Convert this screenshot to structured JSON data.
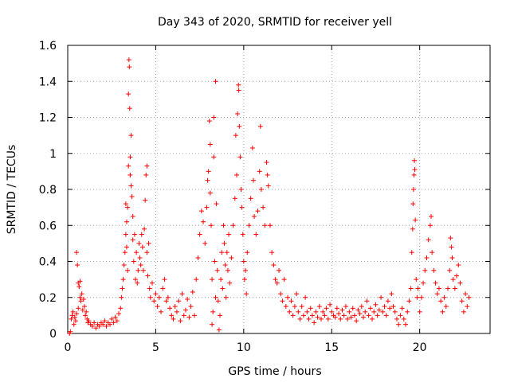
{
  "chart_data": {
    "type": "scatter",
    "title": "Day 343 of 2020, SRMTID for receiver yell",
    "xlabel": "GPS time / hours",
    "ylabel": "SRMTID / TECUs",
    "xlim": [
      0,
      24
    ],
    "ylim": [
      0,
      1.6
    ],
    "xticks": [
      0,
      5,
      10,
      15,
      20
    ],
    "xtick_labels": [
      "0",
      "5",
      "10",
      "15",
      "20"
    ],
    "yticks": [
      0,
      0.2,
      0.4,
      0.6,
      0.8,
      1.0,
      1.2,
      1.4,
      1.6
    ],
    "ytick_labels": [
      "0",
      "0.2",
      "0.4",
      "0.6",
      "0.8",
      "1",
      "1.2",
      "1.4",
      "1.6"
    ],
    "grid": true,
    "marker": "+",
    "marker_color": "#ff0000",
    "series": [
      {
        "name": "SRMTID",
        "points": [
          [
            0.1,
            0.0
          ],
          [
            0.15,
            0.01
          ],
          [
            0.2,
            0.08
          ],
          [
            0.25,
            0.1
          ],
          [
            0.3,
            0.12
          ],
          [
            0.35,
            0.05
          ],
          [
            0.4,
            0.09
          ],
          [
            0.45,
            0.07
          ],
          [
            0.5,
            0.11
          ],
          [
            0.5,
            0.45
          ],
          [
            0.55,
            0.38
          ],
          [
            0.6,
            0.14
          ],
          [
            0.6,
            0.28
          ],
          [
            0.65,
            0.26
          ],
          [
            0.7,
            0.29
          ],
          [
            0.7,
            0.2
          ],
          [
            0.75,
            0.18
          ],
          [
            0.8,
            0.22
          ],
          [
            0.85,
            0.13
          ],
          [
            0.9,
            0.19
          ],
          [
            0.95,
            0.15
          ],
          [
            1.0,
            0.1
          ],
          [
            1.05,
            0.12
          ],
          [
            1.1,
            0.08
          ],
          [
            1.15,
            0.06
          ],
          [
            1.2,
            0.07
          ],
          [
            1.3,
            0.05
          ],
          [
            1.4,
            0.04
          ],
          [
            1.5,
            0.06
          ],
          [
            1.6,
            0.03
          ],
          [
            1.7,
            0.05
          ],
          [
            1.8,
            0.04
          ],
          [
            1.9,
            0.06
          ],
          [
            2.0,
            0.05
          ],
          [
            2.1,
            0.07
          ],
          [
            2.2,
            0.04
          ],
          [
            2.3,
            0.06
          ],
          [
            2.4,
            0.05
          ],
          [
            2.5,
            0.08
          ],
          [
            2.6,
            0.06
          ],
          [
            2.7,
            0.09
          ],
          [
            2.8,
            0.07
          ],
          [
            2.9,
            0.11
          ],
          [
            3.0,
            0.14
          ],
          [
            3.05,
            0.2
          ],
          [
            3.1,
            0.25
          ],
          [
            3.15,
            0.3
          ],
          [
            3.2,
            0.38
          ],
          [
            3.25,
            0.45
          ],
          [
            3.3,
            0.55
          ],
          [
            3.3,
            0.72
          ],
          [
            3.35,
            0.48
          ],
          [
            3.35,
            0.62
          ],
          [
            3.4,
            0.35
          ],
          [
            3.4,
            0.7
          ],
          [
            3.45,
            0.93
          ],
          [
            3.45,
            1.33
          ],
          [
            3.48,
            1.52
          ],
          [
            3.5,
            1.48
          ],
          [
            3.52,
            1.25
          ],
          [
            3.55,
            0.98
          ],
          [
            3.55,
            0.88
          ],
          [
            3.6,
            1.1
          ],
          [
            3.6,
            0.82
          ],
          [
            3.65,
            0.76
          ],
          [
            3.7,
            0.65
          ],
          [
            3.7,
            0.52
          ],
          [
            3.75,
            0.4
          ],
          [
            3.8,
            0.55
          ],
          [
            3.85,
            0.3
          ],
          [
            3.9,
            0.45
          ],
          [
            3.95,
            0.28
          ],
          [
            4.0,
            0.35
          ],
          [
            4.05,
            0.5
          ],
          [
            4.1,
            0.42
          ],
          [
            4.15,
            0.38
          ],
          [
            4.2,
            0.55
          ],
          [
            4.25,
            0.48
          ],
          [
            4.3,
            0.35
          ],
          [
            4.35,
            0.58
          ],
          [
            4.4,
            0.74
          ],
          [
            4.45,
            0.88
          ],
          [
            4.5,
            0.93
          ],
          [
            4.5,
            0.45
          ],
          [
            4.55,
            0.32
          ],
          [
            4.6,
            0.5
          ],
          [
            4.65,
            0.25
          ],
          [
            4.7,
            0.2
          ],
          [
            4.8,
            0.28
          ],
          [
            4.9,
            0.18
          ],
          [
            5.0,
            0.22
          ],
          [
            5.1,
            0.15
          ],
          [
            5.2,
            0.2
          ],
          [
            5.3,
            0.12
          ],
          [
            5.4,
            0.25
          ],
          [
            5.5,
            0.3
          ],
          [
            5.6,
            0.18
          ],
          [
            5.7,
            0.2
          ],
          [
            5.8,
            0.14
          ],
          [
            5.9,
            0.1
          ],
          [
            6.0,
            0.08
          ],
          [
            6.1,
            0.15
          ],
          [
            6.2,
            0.12
          ],
          [
            6.3,
            0.18
          ],
          [
            6.4,
            0.07
          ],
          [
            6.5,
            0.22
          ],
          [
            6.6,
            0.1
          ],
          [
            6.7,
            0.13
          ],
          [
            6.8,
            0.19
          ],
          [
            6.9,
            0.09
          ],
          [
            7.0,
            0.15
          ],
          [
            7.1,
            0.23
          ],
          [
            7.2,
            0.1
          ],
          [
            7.3,
            0.3
          ],
          [
            7.4,
            0.42
          ],
          [
            7.5,
            0.55
          ],
          [
            7.6,
            0.68
          ],
          [
            7.7,
            0.62
          ],
          [
            7.8,
            0.5
          ],
          [
            7.9,
            0.7
          ],
          [
            7.95,
            0.85
          ],
          [
            8.0,
            0.9
          ],
          [
            8.05,
            1.18
          ],
          [
            8.1,
            1.05
          ],
          [
            8.1,
            0.78
          ],
          [
            8.15,
            0.6
          ],
          [
            8.2,
            0.3
          ],
          [
            8.2,
            0.05
          ],
          [
            8.25,
            0.12
          ],
          [
            8.3,
            0.98
          ],
          [
            8.3,
            1.2
          ],
          [
            8.35,
            0.4
          ],
          [
            8.4,
            1.4
          ],
          [
            8.4,
            0.2
          ],
          [
            8.45,
            0.72
          ],
          [
            8.5,
            0.35
          ],
          [
            8.55,
            0.18
          ],
          [
            8.6,
            0.02
          ],
          [
            8.65,
            0.1
          ],
          [
            8.7,
            0.3
          ],
          [
            8.75,
            0.45
          ],
          [
            8.8,
            0.25
          ],
          [
            8.85,
            0.6
          ],
          [
            8.9,
            0.5
          ],
          [
            8.95,
            0.38
          ],
          [
            9.0,
            0.2
          ],
          [
            9.05,
            0.45
          ],
          [
            9.1,
            0.35
          ],
          [
            9.15,
            0.55
          ],
          [
            9.2,
            0.28
          ],
          [
            9.3,
            0.42
          ],
          [
            9.4,
            0.6
          ],
          [
            9.5,
            0.75
          ],
          [
            9.55,
            1.1
          ],
          [
            9.6,
            0.88
          ],
          [
            9.65,
            1.22
          ],
          [
            9.7,
            1.38
          ],
          [
            9.72,
            1.35
          ],
          [
            9.75,
            1.15
          ],
          [
            9.8,
            0.98
          ],
          [
            9.85,
            0.8
          ],
          [
            9.9,
            0.7
          ],
          [
            9.95,
            0.55
          ],
          [
            10.0,
            0.4
          ],
          [
            10.05,
            0.3
          ],
          [
            10.1,
            0.35
          ],
          [
            10.15,
            0.22
          ],
          [
            10.2,
            0.45
          ],
          [
            10.3,
            0.6
          ],
          [
            10.4,
            0.75
          ],
          [
            10.5,
            1.03
          ],
          [
            10.55,
            0.85
          ],
          [
            10.6,
            0.65
          ],
          [
            10.7,
            0.55
          ],
          [
            10.8,
            0.68
          ],
          [
            10.9,
            0.9
          ],
          [
            10.95,
            1.15
          ],
          [
            11.0,
            0.8
          ],
          [
            11.1,
            0.7
          ],
          [
            11.2,
            0.6
          ],
          [
            11.3,
            0.95
          ],
          [
            11.35,
            0.88
          ],
          [
            11.4,
            0.82
          ],
          [
            11.5,
            0.6
          ],
          [
            11.6,
            0.45
          ],
          [
            11.7,
            0.38
          ],
          [
            11.8,
            0.3
          ],
          [
            11.9,
            0.28
          ],
          [
            12.0,
            0.35
          ],
          [
            12.1,
            0.22
          ],
          [
            12.2,
            0.18
          ],
          [
            12.3,
            0.3
          ],
          [
            12.4,
            0.15
          ],
          [
            12.5,
            0.2
          ],
          [
            12.6,
            0.12
          ],
          [
            12.7,
            0.18
          ],
          [
            12.8,
            0.1
          ],
          [
            12.9,
            0.15
          ],
          [
            13.0,
            0.22
          ],
          [
            13.1,
            0.12
          ],
          [
            13.2,
            0.08
          ],
          [
            13.3,
            0.15
          ],
          [
            13.4,
            0.1
          ],
          [
            13.5,
            0.2
          ],
          [
            13.6,
            0.12
          ],
          [
            13.7,
            0.08
          ],
          [
            13.8,
            0.14
          ],
          [
            13.9,
            0.1
          ],
          [
            14.0,
            0.06
          ],
          [
            14.1,
            0.12
          ],
          [
            14.2,
            0.09
          ],
          [
            14.3,
            0.15
          ],
          [
            14.4,
            0.08
          ],
          [
            14.5,
            0.12
          ],
          [
            14.6,
            0.1
          ],
          [
            14.7,
            0.14
          ],
          [
            14.8,
            0.08
          ],
          [
            14.9,
            0.16
          ],
          [
            15.0,
            0.12
          ],
          [
            15.1,
            0.1
          ],
          [
            15.2,
            0.09
          ],
          [
            15.3,
            0.14
          ],
          [
            15.4,
            0.11
          ],
          [
            15.5,
            0.08
          ],
          [
            15.6,
            0.13
          ],
          [
            15.7,
            0.1
          ],
          [
            15.8,
            0.15
          ],
          [
            15.9,
            0.08
          ],
          [
            16.0,
            0.12
          ],
          [
            16.1,
            0.09
          ],
          [
            16.2,
            0.14
          ],
          [
            16.3,
            0.1
          ],
          [
            16.4,
            0.07
          ],
          [
            16.5,
            0.13
          ],
          [
            16.6,
            0.11
          ],
          [
            16.7,
            0.15
          ],
          [
            16.8,
            0.09
          ],
          [
            16.9,
            0.12
          ],
          [
            17.0,
            0.18
          ],
          [
            17.1,
            0.1
          ],
          [
            17.2,
            0.14
          ],
          [
            17.3,
            0.08
          ],
          [
            17.4,
            0.12
          ],
          [
            17.5,
            0.16
          ],
          [
            17.6,
            0.1
          ],
          [
            17.7,
            0.13
          ],
          [
            17.8,
            0.2
          ],
          [
            17.9,
            0.12
          ],
          [
            18.0,
            0.15
          ],
          [
            18.1,
            0.1
          ],
          [
            18.2,
            0.18
          ],
          [
            18.3,
            0.14
          ],
          [
            18.4,
            0.22
          ],
          [
            18.5,
            0.15
          ],
          [
            18.6,
            0.12
          ],
          [
            18.7,
            0.08
          ],
          [
            18.8,
            0.05
          ],
          [
            18.9,
            0.1
          ],
          [
            19.0,
            0.14
          ],
          [
            19.1,
            0.08
          ],
          [
            19.2,
            0.05
          ],
          [
            19.3,
            0.12
          ],
          [
            19.4,
            0.18
          ],
          [
            19.5,
            0.25
          ],
          [
            19.55,
            0.45
          ],
          [
            19.6,
            0.58
          ],
          [
            19.62,
            0.72
          ],
          [
            19.65,
            0.8
          ],
          [
            19.68,
            0.88
          ],
          [
            19.7,
            0.96
          ],
          [
            19.72,
            0.91
          ],
          [
            19.75,
            0.63
          ],
          [
            19.8,
            0.3
          ],
          [
            19.85,
            0.2
          ],
          [
            19.9,
            0.25
          ],
          [
            20.0,
            0.12
          ],
          [
            20.1,
            0.2
          ],
          [
            20.2,
            0.28
          ],
          [
            20.3,
            0.35
          ],
          [
            20.4,
            0.42
          ],
          [
            20.5,
            0.52
          ],
          [
            20.6,
            0.6
          ],
          [
            20.65,
            0.65
          ],
          [
            20.7,
            0.45
          ],
          [
            20.8,
            0.35
          ],
          [
            20.9,
            0.28
          ],
          [
            21.0,
            0.22
          ],
          [
            21.1,
            0.25
          ],
          [
            21.2,
            0.18
          ],
          [
            21.3,
            0.12
          ],
          [
            21.4,
            0.2
          ],
          [
            21.5,
            0.15
          ],
          [
            21.6,
            0.25
          ],
          [
            21.7,
            0.35
          ],
          [
            21.75,
            0.53
          ],
          [
            21.8,
            0.48
          ],
          [
            21.85,
            0.42
          ],
          [
            21.9,
            0.3
          ],
          [
            22.0,
            0.25
          ],
          [
            22.1,
            0.32
          ],
          [
            22.2,
            0.38
          ],
          [
            22.3,
            0.28
          ],
          [
            22.4,
            0.18
          ],
          [
            22.5,
            0.12
          ],
          [
            22.6,
            0.22
          ],
          [
            22.7,
            0.15
          ],
          [
            22.8,
            0.2
          ]
        ]
      }
    ]
  }
}
